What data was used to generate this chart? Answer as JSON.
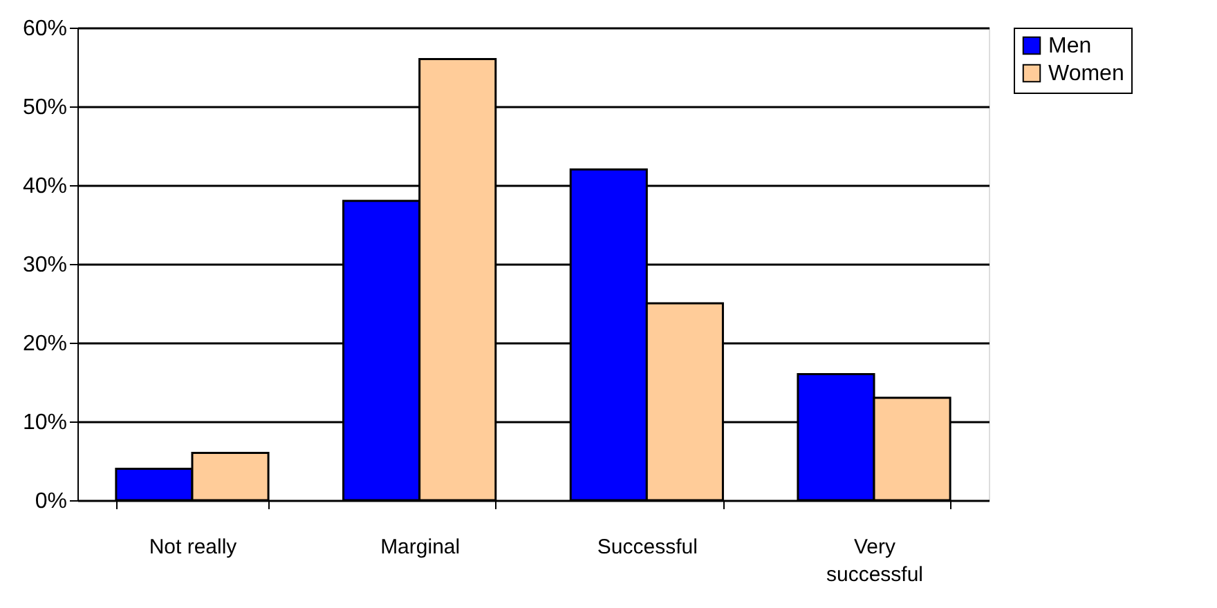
{
  "chart_data": {
    "type": "bar",
    "categories": [
      "Not really",
      "Marginal",
      "Successful",
      "Very successful"
    ],
    "series": [
      {
        "name": "Men",
        "color": "#0000ff",
        "values": [
          4,
          38,
          42,
          16
        ]
      },
      {
        "name": "Women",
        "color": "#ffcc99",
        "values": [
          6,
          56,
          25,
          13
        ]
      }
    ],
    "ylim": [
      0,
      60
    ],
    "yticks": [
      {
        "value": 0,
        "label": "0%"
      },
      {
        "value": 10,
        "label": "10%"
      },
      {
        "value": 20,
        "label": "20%"
      },
      {
        "value": 30,
        "label": "30%"
      },
      {
        "value": 40,
        "label": "40%"
      },
      {
        "value": 50,
        "label": "50%"
      },
      {
        "value": 60,
        "label": "60%"
      }
    ],
    "grid": "y",
    "legend": "right"
  }
}
